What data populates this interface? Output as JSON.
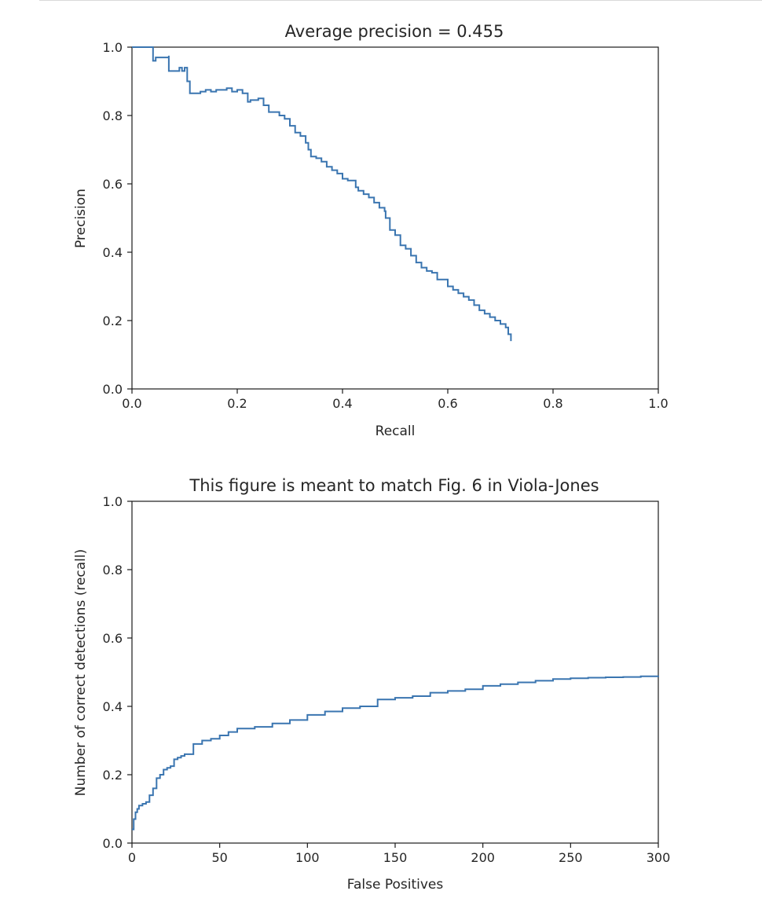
{
  "chart_data": [
    {
      "type": "line",
      "title": "Average precision = 0.455",
      "xlabel": "Recall",
      "ylabel": "Precision",
      "xlim": [
        0,
        1
      ],
      "ylim": [
        0,
        1
      ],
      "xticks": [
        "0.0",
        "0.2",
        "0.4",
        "0.6",
        "0.8",
        "1.0"
      ],
      "yticks": [
        "0.0",
        "0.2",
        "0.4",
        "0.6",
        "0.8",
        "1.0"
      ],
      "grid": false,
      "line_color": "#3a75b0",
      "series": [
        {
          "x": [
            0.0,
            0.04,
            0.04,
            0.045,
            0.045,
            0.06,
            0.07,
            0.07,
            0.09,
            0.095,
            0.1,
            0.105,
            0.105,
            0.11,
            0.11,
            0.13,
            0.14,
            0.15,
            0.16,
            0.18,
            0.19,
            0.2,
            0.21,
            0.22,
            0.225,
            0.24,
            0.25,
            0.26,
            0.28,
            0.29,
            0.3,
            0.31,
            0.32,
            0.33,
            0.335,
            0.34,
            0.35,
            0.36,
            0.37,
            0.38,
            0.39,
            0.4,
            0.41,
            0.42,
            0.425,
            0.43,
            0.44,
            0.45,
            0.46,
            0.47,
            0.48,
            0.482,
            0.49,
            0.5,
            0.51,
            0.52,
            0.53,
            0.54,
            0.55,
            0.56,
            0.57,
            0.58,
            0.6,
            0.61,
            0.62,
            0.63,
            0.64,
            0.65,
            0.66,
            0.67,
            0.68,
            0.69,
            0.7,
            0.71,
            0.715,
            0.72
          ],
          "y": [
            1.0,
            1.0,
            0.96,
            0.965,
            0.97,
            0.97,
            0.975,
            0.93,
            0.94,
            0.93,
            0.94,
            0.915,
            0.9,
            0.9,
            0.865,
            0.87,
            0.875,
            0.87,
            0.875,
            0.88,
            0.87,
            0.875,
            0.865,
            0.84,
            0.845,
            0.85,
            0.83,
            0.81,
            0.8,
            0.79,
            0.77,
            0.75,
            0.74,
            0.72,
            0.7,
            0.68,
            0.675,
            0.665,
            0.65,
            0.64,
            0.63,
            0.615,
            0.61,
            0.61,
            0.59,
            0.58,
            0.57,
            0.56,
            0.545,
            0.53,
            0.52,
            0.5,
            0.465,
            0.45,
            0.42,
            0.41,
            0.39,
            0.37,
            0.355,
            0.345,
            0.34,
            0.32,
            0.3,
            0.29,
            0.28,
            0.27,
            0.26,
            0.245,
            0.23,
            0.22,
            0.21,
            0.2,
            0.19,
            0.18,
            0.16,
            0.14
          ]
        }
      ]
    },
    {
      "type": "line",
      "title": "This figure is meant to match Fig. 6 in Viola-Jones",
      "xlabel": "False Positives",
      "ylabel": "Number of correct detections (recall)",
      "xlim": [
        0,
        300
      ],
      "ylim": [
        0,
        1
      ],
      "xticks": [
        "0",
        "50",
        "100",
        "150",
        "200",
        "250",
        "300"
      ],
      "yticks": [
        "0.0",
        "0.2",
        "0.4",
        "0.6",
        "0.8",
        "1.0"
      ],
      "grid": false,
      "line_color": "#3a75b0",
      "series": [
        {
          "x": [
            0,
            1,
            2,
            3,
            4,
            6,
            8,
            10,
            12,
            14,
            16,
            18,
            20,
            22,
            24,
            26,
            28,
            30,
            35,
            40,
            45,
            50,
            55,
            60,
            70,
            80,
            90,
            100,
            110,
            120,
            130,
            140,
            150,
            160,
            170,
            180,
            190,
            200,
            210,
            220,
            230,
            240,
            250,
            260,
            270,
            280,
            290,
            300
          ],
          "y": [
            0.04,
            0.07,
            0.09,
            0.1,
            0.11,
            0.115,
            0.12,
            0.14,
            0.16,
            0.19,
            0.2,
            0.215,
            0.22,
            0.225,
            0.245,
            0.25,
            0.255,
            0.26,
            0.29,
            0.3,
            0.305,
            0.315,
            0.325,
            0.335,
            0.34,
            0.35,
            0.36,
            0.375,
            0.385,
            0.395,
            0.4,
            0.42,
            0.425,
            0.43,
            0.44,
            0.445,
            0.45,
            0.46,
            0.465,
            0.47,
            0.475,
            0.48,
            0.482,
            0.484,
            0.485,
            0.486,
            0.488,
            0.49
          ]
        }
      ]
    }
  ]
}
